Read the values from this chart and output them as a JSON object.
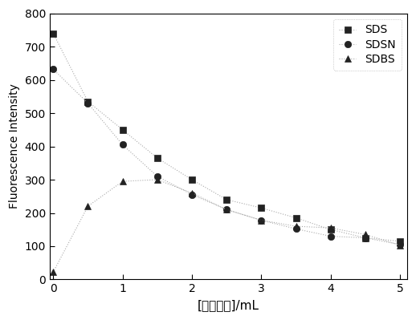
{
  "x": [
    0,
    0.5,
    1,
    1.5,
    2,
    2.5,
    3,
    3.5,
    4,
    4.5,
    5
  ],
  "SDS": [
    740,
    535,
    450,
    365,
    300,
    240,
    215,
    185,
    150,
    125,
    115
  ],
  "SDSN": [
    632,
    530,
    405,
    310,
    255,
    210,
    178,
    152,
    130,
    125,
    105
  ],
  "SDBS": [
    22,
    220,
    295,
    300,
    260,
    210,
    178,
    160,
    155,
    135,
    103
  ],
  "xlabel": "[对甲苯胺]/mL",
  "ylabel": "Fluorescence Intensity",
  "ylim": [
    0,
    800
  ],
  "xlim": [
    -0.05,
    5.1
  ],
  "yticks": [
    0,
    100,
    200,
    300,
    400,
    500,
    600,
    700,
    800
  ],
  "xticks": [
    0,
    1,
    2,
    3,
    4,
    5
  ],
  "legend_labels": [
    "SDS",
    "SDSN",
    "SDBS"
  ],
  "line_color": "#aaaaaa",
  "marker_color": "#222222",
  "marker_square": "s",
  "marker_circle": "o",
  "marker_triangle": "^",
  "markersize": 6,
  "linewidth": 0.8,
  "linestyle": ":"
}
